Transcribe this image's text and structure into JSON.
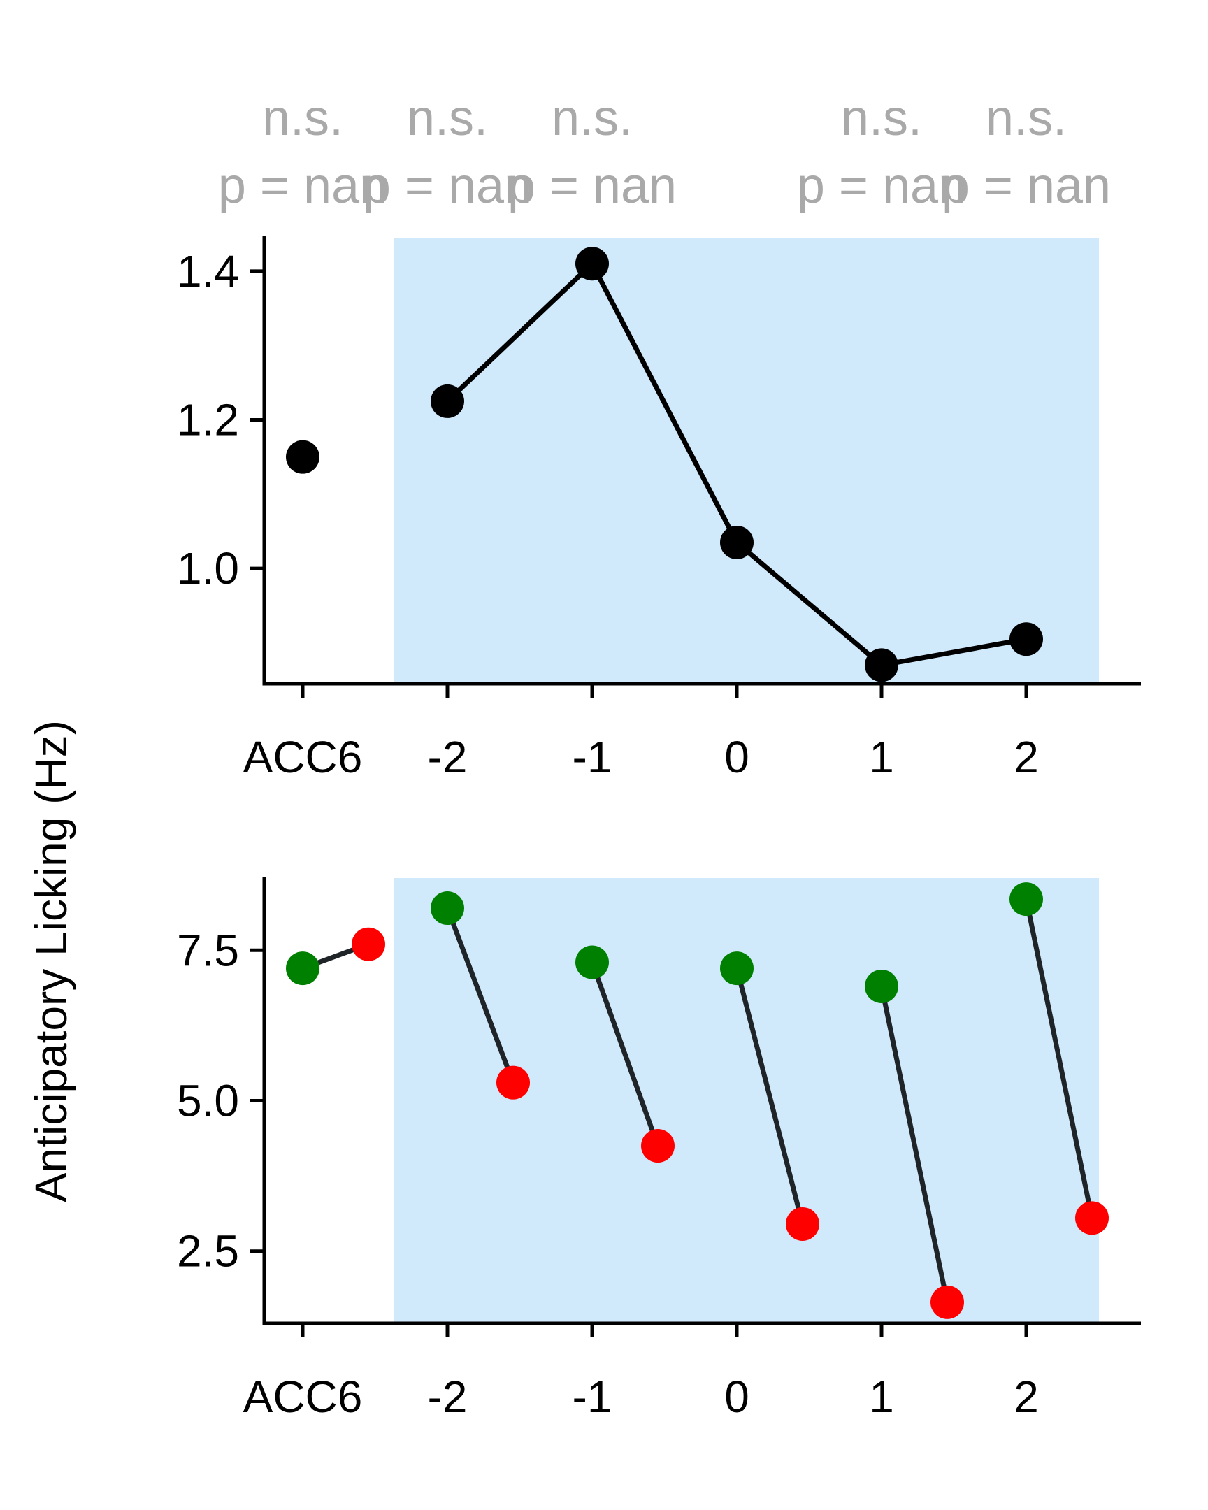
{
  "ylabel": "Anticipatory Licking (Hz)",
  "annotations": [
    {
      "sig": "n.s.",
      "p": "p = nan"
    },
    {
      "sig": "n.s.",
      "p": "p = nan"
    },
    {
      "sig": "n.s.",
      "p": "p = nan"
    },
    {
      "sig": "n.s.",
      "p": "p = nan"
    },
    {
      "sig": "n.s.",
      "p": "p = nan"
    }
  ],
  "chart_data": [
    {
      "type": "line",
      "categories": [
        "ACC6",
        "-2",
        "-1",
        "0",
        "1",
        "2"
      ],
      "values": [
        1.15,
        1.225,
        1.41,
        1.035,
        0.87,
        0.905
      ],
      "line_connects": [
        "-2",
        "-1",
        "0",
        "1",
        "2"
      ],
      "ylim": [
        0.845,
        1.445
      ],
      "yticks": [
        "1.0",
        "1.2",
        "1.4"
      ],
      "shaded_region": {
        "from": "-2",
        "to": "2"
      },
      "colors": {
        "marker": "#000000",
        "line": "#000000",
        "shade": "#d0e9fb"
      }
    },
    {
      "type": "scatter",
      "categories": [
        "ACC6",
        "-2",
        "-1",
        "0",
        "1",
        "2"
      ],
      "series": [
        {
          "values": [
            7.2,
            8.2,
            7.3,
            7.2,
            6.9,
            8.35
          ],
          "color": "#008000"
        },
        {
          "values": [
            7.6,
            5.3,
            4.25,
            2.95,
            1.65,
            3.05
          ],
          "color": "#ff0000"
        }
      ],
      "paired_lines": true,
      "ylim": [
        1.3,
        8.7
      ],
      "yticks": [
        "2.5",
        "5.0",
        "7.5"
      ],
      "shaded_region": {
        "from": "-2",
        "to": "2"
      },
      "colors": {
        "line": "#1f2428",
        "shade": "#d0e9fb"
      }
    }
  ]
}
